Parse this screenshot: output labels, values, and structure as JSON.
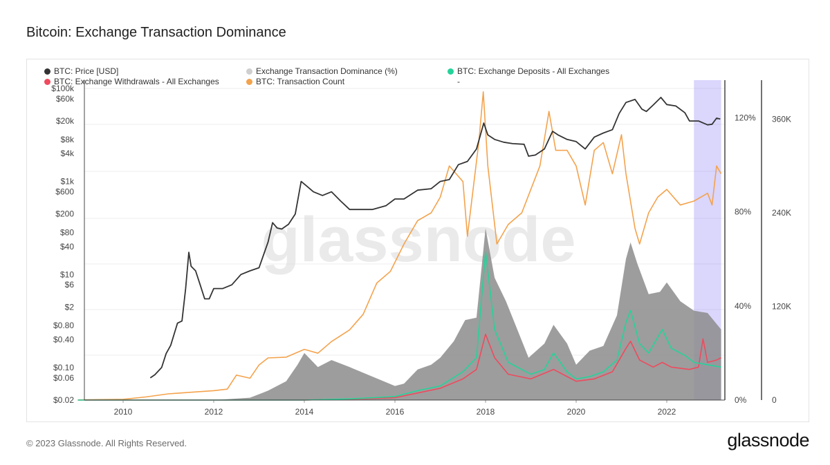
{
  "title": "Bitcoin: Exchange Transaction Dominance",
  "footer": "© 2023 Glassnode. All Rights Reserved.",
  "brand": "glassnode",
  "watermark": "glassnode",
  "legend": [
    {
      "label": "BTC: Price [USD]",
      "color": "#333333"
    },
    {
      "label": "Exchange Transaction Dominance (%)",
      "color": "#cfcfcf"
    },
    {
      "label": "BTC: Exchange Deposits - All Exchanges",
      "color": "#25d39a"
    },
    {
      "label": "BTC: Exchange Withdrawals - All Exchanges",
      "color": "#ef4a5d"
    },
    {
      "label": "BTC: Transaction Count",
      "color": "#f4a24c"
    },
    {
      "label": "-",
      "color": ""
    }
  ],
  "chart_data": {
    "type": "line",
    "x_ticks": [
      "2010",
      "2012",
      "2014",
      "2016",
      "2018",
      "2020",
      "2022"
    ],
    "price_axis": {
      "scale": "log",
      "tick_labels": [
        "$100k",
        "$60k",
        "$20k",
        "$8k",
        "$4k",
        "$1k",
        "$600",
        "$200",
        "$80",
        "$40",
        "$10",
        "$6",
        "$2",
        "$0.80",
        "$0.40",
        "$0.10",
        "$0.06",
        "$0.02"
      ],
      "tick_values": [
        100000,
        60000,
        20000,
        8000,
        4000,
        1000,
        600,
        200,
        80,
        40,
        10,
        6,
        2,
        0.8,
        0.4,
        0.1,
        0.06,
        0.02
      ]
    },
    "dominance_axis": {
      "tick_labels": [
        "120%",
        "80%",
        "40%",
        "0%"
      ],
      "tick_values": [
        120,
        80,
        40,
        0
      ],
      "ylim": [
        0,
        136
      ]
    },
    "count_axis": {
      "tick_labels": [
        "360K",
        "240K",
        "120K",
        "0"
      ],
      "tick_values": [
        360000,
        240000,
        120000,
        0
      ],
      "ylim": [
        0,
        410000
      ]
    },
    "highlight": {
      "from": 2022.6,
      "to": 2023.2,
      "color": "#7b6cf6"
    },
    "series": [
      {
        "name": "BTC: Price [USD]",
        "color": "#333333",
        "axis": "price",
        "points": [
          [
            2010.6,
            0.06
          ],
          [
            2010.7,
            0.07
          ],
          [
            2010.85,
            0.1
          ],
          [
            2010.95,
            0.2
          ],
          [
            2011.05,
            0.3
          ],
          [
            2011.2,
            0.9
          ],
          [
            2011.3,
            1
          ],
          [
            2011.38,
            5
          ],
          [
            2011.45,
            30
          ],
          [
            2011.5,
            15
          ],
          [
            2011.6,
            12
          ],
          [
            2011.7,
            6
          ],
          [
            2011.8,
            3
          ],
          [
            2011.9,
            3
          ],
          [
            2012,
            5
          ],
          [
            2012.2,
            5
          ],
          [
            2012.4,
            6
          ],
          [
            2012.6,
            10
          ],
          [
            2012.8,
            12
          ],
          [
            2013,
            14
          ],
          [
            2013.2,
            50
          ],
          [
            2013.3,
            130
          ],
          [
            2013.4,
            100
          ],
          [
            2013.5,
            95
          ],
          [
            2013.65,
            120
          ],
          [
            2013.8,
            200
          ],
          [
            2013.93,
            1000
          ],
          [
            2014.05,
            800
          ],
          [
            2014.2,
            600
          ],
          [
            2014.4,
            500
          ],
          [
            2014.6,
            600
          ],
          [
            2014.8,
            380
          ],
          [
            2015,
            250
          ],
          [
            2015.2,
            250
          ],
          [
            2015.5,
            250
          ],
          [
            2015.8,
            300
          ],
          [
            2016,
            420
          ],
          [
            2016.2,
            420
          ],
          [
            2016.5,
            650
          ],
          [
            2016.8,
            700
          ],
          [
            2017,
            1000
          ],
          [
            2017.2,
            1100
          ],
          [
            2017.4,
            2300
          ],
          [
            2017.6,
            2700
          ],
          [
            2017.8,
            5000
          ],
          [
            2017.96,
            18000
          ],
          [
            2018.05,
            10000
          ],
          [
            2018.2,
            8000
          ],
          [
            2018.4,
            7000
          ],
          [
            2018.6,
            6500
          ],
          [
            2018.85,
            6300
          ],
          [
            2018.95,
            3500
          ],
          [
            2019.1,
            3700
          ],
          [
            2019.3,
            5000
          ],
          [
            2019.48,
            12000
          ],
          [
            2019.6,
            10000
          ],
          [
            2019.8,
            8000
          ],
          [
            2020,
            7200
          ],
          [
            2020.2,
            5000
          ],
          [
            2020.4,
            9000
          ],
          [
            2020.6,
            11000
          ],
          [
            2020.8,
            13000
          ],
          [
            2020.95,
            29000
          ],
          [
            2021.1,
            50000
          ],
          [
            2021.3,
            58000
          ],
          [
            2021.45,
            36000
          ],
          [
            2021.55,
            32000
          ],
          [
            2021.7,
            44000
          ],
          [
            2021.87,
            64000
          ],
          [
            2022,
            45000
          ],
          [
            2022.2,
            42000
          ],
          [
            2022.4,
            30000
          ],
          [
            2022.5,
            20000
          ],
          [
            2022.7,
            20000
          ],
          [
            2022.9,
            16500
          ],
          [
            2023,
            17000
          ],
          [
            2023.1,
            23000
          ],
          [
            2023.18,
            22000
          ]
        ]
      },
      {
        "name": "BTC: Transaction Count",
        "color": "#f4a24c",
        "axis": "count",
        "points": [
          [
            2009,
            200
          ],
          [
            2010,
            1000
          ],
          [
            2010.5,
            4000
          ],
          [
            2011,
            8000
          ],
          [
            2011.5,
            10000
          ],
          [
            2012,
            12000
          ],
          [
            2012.3,
            14000
          ],
          [
            2012.5,
            32000
          ],
          [
            2012.8,
            28000
          ],
          [
            2013,
            45000
          ],
          [
            2013.2,
            54000
          ],
          [
            2013.6,
            55000
          ],
          [
            2014,
            65000
          ],
          [
            2014.3,
            60000
          ],
          [
            2014.6,
            75000
          ],
          [
            2015,
            90000
          ],
          [
            2015.3,
            110000
          ],
          [
            2015.6,
            150000
          ],
          [
            2015.9,
            165000
          ],
          [
            2016.2,
            200000
          ],
          [
            2016.5,
            230000
          ],
          [
            2016.8,
            240000
          ],
          [
            2017,
            260000
          ],
          [
            2017.2,
            300000
          ],
          [
            2017.5,
            280000
          ],
          [
            2017.6,
            210000
          ],
          [
            2017.85,
            330000
          ],
          [
            2017.95,
            395000
          ],
          [
            2018.05,
            300000
          ],
          [
            2018.25,
            200000
          ],
          [
            2018.5,
            225000
          ],
          [
            2018.8,
            240000
          ],
          [
            2019,
            270000
          ],
          [
            2019.2,
            300000
          ],
          [
            2019.4,
            370000
          ],
          [
            2019.55,
            320000
          ],
          [
            2019.8,
            320000
          ],
          [
            2020,
            300000
          ],
          [
            2020.2,
            250000
          ],
          [
            2020.4,
            320000
          ],
          [
            2020.6,
            330000
          ],
          [
            2020.8,
            290000
          ],
          [
            2021,
            340000
          ],
          [
            2021.1,
            290000
          ],
          [
            2021.3,
            220000
          ],
          [
            2021.4,
            200000
          ],
          [
            2021.6,
            240000
          ],
          [
            2021.8,
            260000
          ],
          [
            2022,
            270000
          ],
          [
            2022.3,
            250000
          ],
          [
            2022.6,
            255000
          ],
          [
            2022.9,
            265000
          ],
          [
            2023,
            250000
          ],
          [
            2023.1,
            300000
          ],
          [
            2023.2,
            290000
          ]
        ]
      },
      {
        "name": "Exchange Transaction Dominance (%)",
        "color": "#8c8c8c",
        "axis": "dominance",
        "render": "area",
        "points": [
          [
            2009,
            0
          ],
          [
            2012,
            0
          ],
          [
            2012.8,
            1
          ],
          [
            2013.2,
            4
          ],
          [
            2013.6,
            8
          ],
          [
            2013.85,
            15
          ],
          [
            2014,
            20
          ],
          [
            2014.3,
            14
          ],
          [
            2014.6,
            17
          ],
          [
            2015,
            14
          ],
          [
            2015.5,
            10
          ],
          [
            2016,
            6
          ],
          [
            2016.2,
            7
          ],
          [
            2016.5,
            13
          ],
          [
            2016.8,
            15
          ],
          [
            2017,
            18
          ],
          [
            2017.3,
            25
          ],
          [
            2017.55,
            34
          ],
          [
            2017.8,
            35
          ],
          [
            2018,
            73
          ],
          [
            2018.2,
            52
          ],
          [
            2018.45,
            42
          ],
          [
            2018.7,
            30
          ],
          [
            2018.95,
            18
          ],
          [
            2019.3,
            24
          ],
          [
            2019.5,
            32
          ],
          [
            2019.8,
            24
          ],
          [
            2020,
            15
          ],
          [
            2020.3,
            21
          ],
          [
            2020.6,
            23
          ],
          [
            2020.9,
            36
          ],
          [
            2021.1,
            60
          ],
          [
            2021.2,
            67
          ],
          [
            2021.35,
            58
          ],
          [
            2021.6,
            45
          ],
          [
            2021.85,
            46
          ],
          [
            2022,
            50
          ],
          [
            2022.3,
            42
          ],
          [
            2022.6,
            38
          ],
          [
            2022.9,
            37
          ],
          [
            2023.2,
            30
          ]
        ]
      },
      {
        "name": "BTC: Exchange Deposits - All Exchanges",
        "color": "#25d39a",
        "axis": "dominance",
        "points": [
          [
            2009,
            0
          ],
          [
            2014,
            0
          ],
          [
            2015,
            0.5
          ],
          [
            2016,
            1.5
          ],
          [
            2016.5,
            4
          ],
          [
            2017,
            6
          ],
          [
            2017.5,
            12
          ],
          [
            2017.8,
            18
          ],
          [
            2018,
            63
          ],
          [
            2018.2,
            30
          ],
          [
            2018.5,
            16
          ],
          [
            2019,
            11
          ],
          [
            2019.3,
            13
          ],
          [
            2019.5,
            20
          ],
          [
            2019.8,
            12
          ],
          [
            2020,
            9
          ],
          [
            2020.3,
            10
          ],
          [
            2020.6,
            12
          ],
          [
            2020.9,
            17
          ],
          [
            2021.1,
            33
          ],
          [
            2021.2,
            38
          ],
          [
            2021.4,
            24
          ],
          [
            2021.6,
            20
          ],
          [
            2021.9,
            30
          ],
          [
            2022.1,
            22
          ],
          [
            2022.4,
            19
          ],
          [
            2022.6,
            16
          ],
          [
            2022.9,
            15
          ],
          [
            2023.2,
            14
          ]
        ]
      },
      {
        "name": "BTC: Exchange Withdrawals - All Exchanges",
        "color": "#ef4a5d",
        "axis": "dominance",
        "points": [
          [
            2009,
            0
          ],
          [
            2014,
            0
          ],
          [
            2015,
            0.4
          ],
          [
            2016,
            1
          ],
          [
            2016.5,
            3
          ],
          [
            2017,
            5
          ],
          [
            2017.5,
            9
          ],
          [
            2017.8,
            13
          ],
          [
            2018,
            28
          ],
          [
            2018.2,
            18
          ],
          [
            2018.5,
            11
          ],
          [
            2019,
            9
          ],
          [
            2019.5,
            13
          ],
          [
            2019.8,
            10
          ],
          [
            2020,
            8
          ],
          [
            2020.4,
            9
          ],
          [
            2020.8,
            12
          ],
          [
            2021.1,
            22
          ],
          [
            2021.2,
            25
          ],
          [
            2021.4,
            17
          ],
          [
            2021.7,
            14
          ],
          [
            2021.9,
            16
          ],
          [
            2022.1,
            14
          ],
          [
            2022.5,
            13
          ],
          [
            2022.7,
            14
          ],
          [
            2022.8,
            26
          ],
          [
            2022.9,
            16
          ],
          [
            2023.1,
            17
          ],
          [
            2023.2,
            18
          ]
        ]
      }
    ]
  }
}
